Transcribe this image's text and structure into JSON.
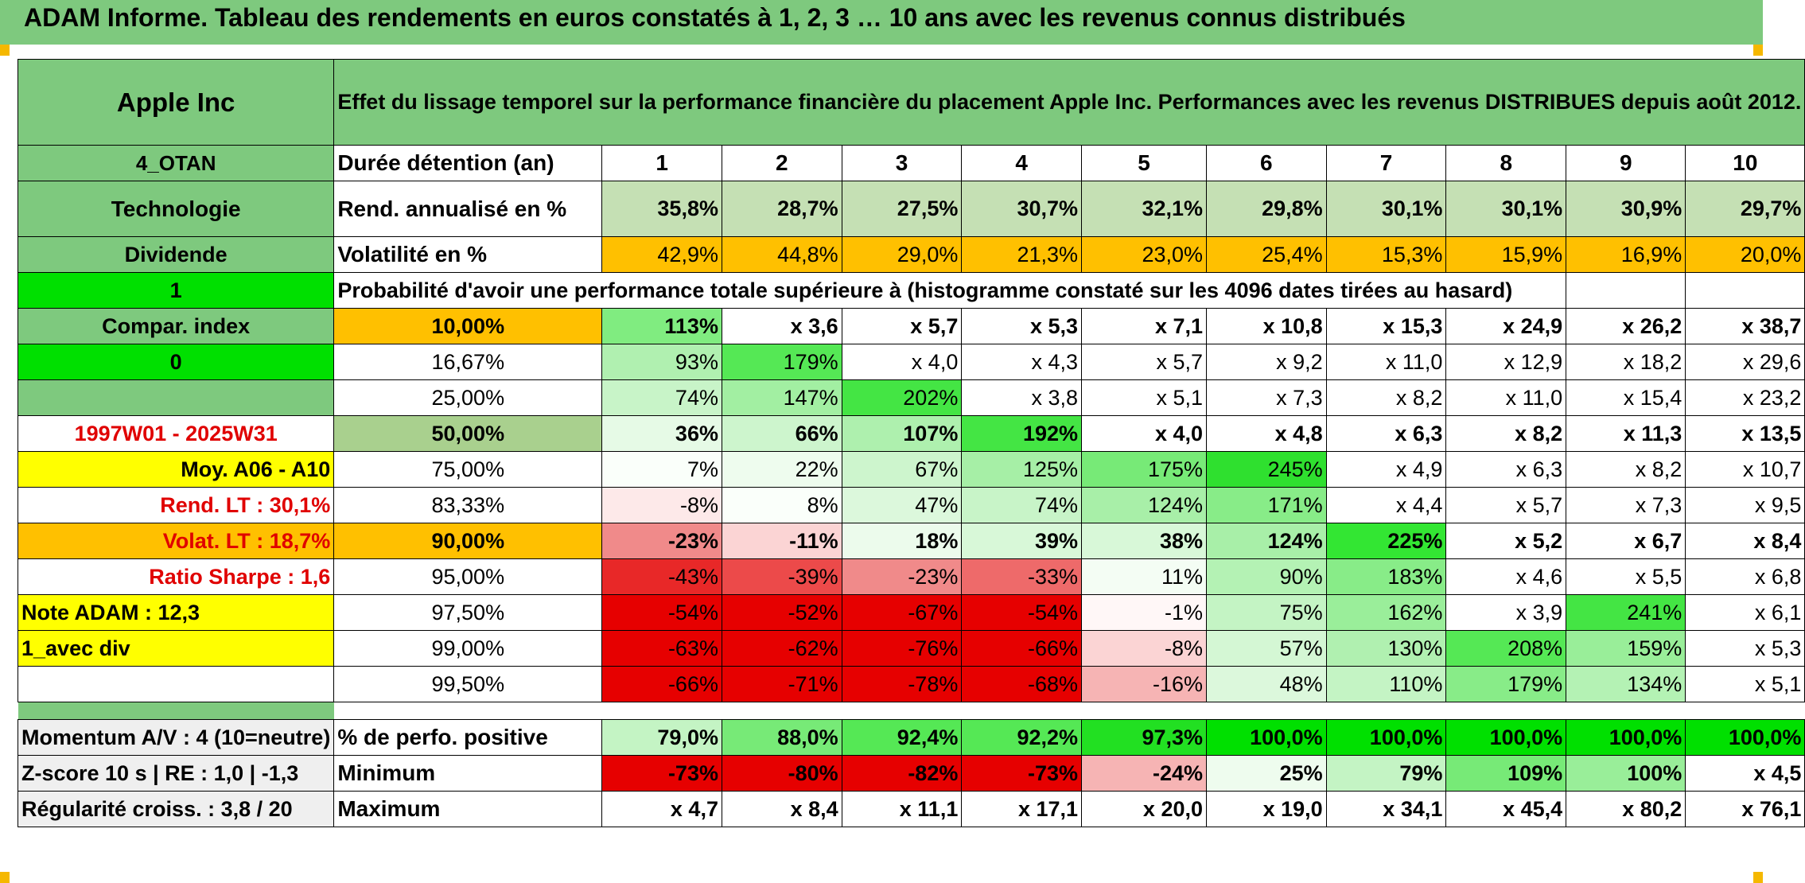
{
  "title": "ADAM Informe. Tableau des rendements en euros constatés à 1, 2, 3 … 10 ans avec les revenus connus distribués",
  "header": {
    "asset": "Apple Inc",
    "description": "Effet du lissage temporel sur la performance financière du placement Apple Inc. Performances avec les revenus DISTRIBUES depuis août 2012."
  },
  "left": {
    "code": "4_OTAN",
    "sector": "Technologie",
    "dividend": "Dividende",
    "one": "1",
    "compar": "Compar. index",
    "zero": "0",
    "period": "1997W01 - 2025W31",
    "moy": "Moy. A06 - A10",
    "rend_lt": "Rend. LT :   30,1%",
    "volat_lt": "Volat. LT :   18,7%",
    "sharpe": "Ratio Sharpe :    1,6",
    "note": "Note ADAM : 12,3",
    "avec_div": "1_avec div"
  },
  "labels": {
    "duree": "Durée détention (an)",
    "rend": "Rend. annualisé en %",
    "vol": "Volatilité en %",
    "prob": "Probabilité d'avoir une performance totale supérieure à (histogramme constaté sur les 4096 dates tirées au hasard)",
    "pos": "% de perfo. positive",
    "min": "Minimum",
    "max": "Maximum"
  },
  "years": [
    "1",
    "2",
    "3",
    "4",
    "5",
    "6",
    "7",
    "8",
    "9",
    "10"
  ],
  "rend": [
    "35,8%",
    "28,7%",
    "27,5%",
    "30,7%",
    "32,1%",
    "29,8%",
    "30,1%",
    "30,1%",
    "30,9%",
    "29,7%"
  ],
  "vol": [
    "42,9%",
    "44,8%",
    "29,0%",
    "21,3%",
    "23,0%",
    "25,4%",
    "15,3%",
    "15,9%",
    "16,9%",
    "20,0%"
  ],
  "prob_rows": [
    {
      "pct": "10,00%",
      "cells": [
        "113%",
        "x 3,6",
        "x 5,7",
        "x 5,3",
        "x 7,1",
        "x 10,8",
        "x 15,3",
        "x 24,9",
        "x 26,2",
        "x 38,7"
      ]
    },
    {
      "pct": "16,67%",
      "cells": [
        "93%",
        "179%",
        "x 4,0",
        "x 4,3",
        "x 5,7",
        "x 9,2",
        "x 11,0",
        "x 12,9",
        "x 18,2",
        "x 29,6"
      ]
    },
    {
      "pct": "25,00%",
      "cells": [
        "74%",
        "147%",
        "202%",
        "x 3,8",
        "x 5,1",
        "x 7,3",
        "x 8,2",
        "x 11,0",
        "x 15,4",
        "x 23,2"
      ]
    },
    {
      "pct": "50,00%",
      "cells": [
        "36%",
        "66%",
        "107%",
        "192%",
        "x 4,0",
        "x 4,8",
        "x 6,3",
        "x 8,2",
        "x 11,3",
        "x 13,5"
      ]
    },
    {
      "pct": "75,00%",
      "cells": [
        "7%",
        "22%",
        "67%",
        "125%",
        "175%",
        "245%",
        "x 4,9",
        "x 6,3",
        "x 8,2",
        "x 10,7"
      ]
    },
    {
      "pct": "83,33%",
      "cells": [
        "-8%",
        "8%",
        "47%",
        "74%",
        "124%",
        "171%",
        "x 4,4",
        "x 5,7",
        "x 7,3",
        "x 9,5"
      ]
    },
    {
      "pct": "90,00%",
      "cells": [
        "-23%",
        "-11%",
        "18%",
        "39%",
        "38%",
        "124%",
        "225%",
        "x 5,2",
        "x 6,7",
        "x 8,4"
      ]
    },
    {
      "pct": "95,00%",
      "cells": [
        "-43%",
        "-39%",
        "-23%",
        "-33%",
        "11%",
        "90%",
        "183%",
        "x 4,6",
        "x 5,5",
        "x 6,8"
      ]
    },
    {
      "pct": "97,50%",
      "cells": [
        "-54%",
        "-52%",
        "-67%",
        "-54%",
        "-1%",
        "75%",
        "162%",
        "x 3,9",
        "241%",
        "x 6,1"
      ]
    },
    {
      "pct": "99,00%",
      "cells": [
        "-63%",
        "-62%",
        "-76%",
        "-66%",
        "-8%",
        "57%",
        "130%",
        "208%",
        "159%",
        "x 5,3"
      ]
    },
    {
      "pct": "99,50%",
      "cells": [
        "-66%",
        "-71%",
        "-78%",
        "-68%",
        "-16%",
        "48%",
        "110%",
        "179%",
        "134%",
        "x 5,1"
      ]
    }
  ],
  "footer_left": {
    "momentum": "Momentum A/V : 4 (10=neutre)",
    "zscore": "Z-score 10 s | RE : 1,0 | -1,3",
    "regularite": "Régularité croiss. : 3,8 / 20"
  },
  "pos": [
    "79,0%",
    "88,0%",
    "92,4%",
    "92,2%",
    "97,3%",
    "100,0%",
    "100,0%",
    "100,0%",
    "100,0%",
    "100,0%"
  ],
  "min": [
    "-73%",
    "-80%",
    "-82%",
    "-73%",
    "-24%",
    "25%",
    "79%",
    "109%",
    "100%",
    "x 4,5"
  ],
  "max": [
    "x 4,7",
    "x 8,4",
    "x 11,1",
    "x 17,1",
    "x 20,0",
    "x 19,0",
    "x 34,1",
    "x 45,4",
    "x 80,2",
    "x 76,1"
  ],
  "colors": {
    "header_green": "#7ec97e",
    "bright_green": "#00e000",
    "yellow": "#ffff00",
    "orange": "#ffc000",
    "red_text": "#e00000"
  }
}
